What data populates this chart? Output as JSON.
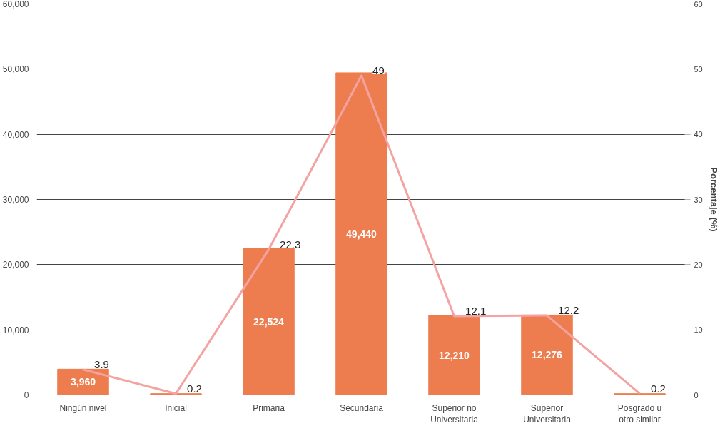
{
  "chart_data": {
    "type": "bar",
    "categories": [
      "Ningún nivel",
      "Inicial",
      "Primaria",
      "Secundaria",
      "Superior no Universitaria",
      "Superior Universitaria",
      "Posgrado u otro similar"
    ],
    "series": [
      {
        "color": "#ed7d4f",
        "values": [
          3960,
          200,
          22524,
          49440,
          12210,
          12276,
          200
        ],
        "value_labels": [
          "3,960",
          null,
          "22,524",
          "49,440",
          "12,210",
          "12,276",
          null
        ]
      },
      {
        "type": "line",
        "axis": "y2",
        "color": "#f4a3a3",
        "values": [
          3.9,
          0.2,
          22.3,
          49,
          12.1,
          12.2,
          0.2
        ],
        "data_labels": true
      }
    ],
    "ylim": [
      0,
      60000
    ],
    "yticks": [
      {
        "value": 0,
        "label": "0"
      },
      {
        "value": 10000,
        "label": "10,000"
      },
      {
        "value": 20000,
        "label": "20,000"
      },
      {
        "value": 30000,
        "label": "30,000"
      },
      {
        "value": 40000,
        "label": "40,000"
      },
      {
        "value": 50000,
        "label": "50,000"
      },
      {
        "value": 60000,
        "label": "60,000"
      }
    ],
    "y2lim": [
      0,
      60
    ],
    "y2ticks": [
      0,
      10,
      20,
      30,
      40,
      50,
      60
    ],
    "y2label": "Porcentaje (%)",
    "grid": "y",
    "marker": "none"
  }
}
